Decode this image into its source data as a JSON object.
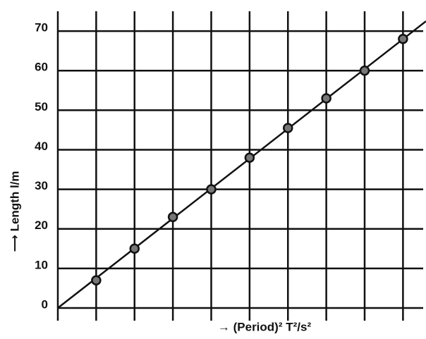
{
  "chart_data": {
    "type": "scatter",
    "x_label": "→ (Period)² T²/s²",
    "y_label": "⟶ Length l/m",
    "x": [
      1,
      2,
      3,
      4,
      5,
      6,
      7,
      8,
      9
    ],
    "values": [
      7,
      15,
      23,
      30,
      38,
      45.5,
      53,
      60,
      68
    ],
    "color": "#111111",
    "xlim": [
      0,
      9.6
    ],
    "ylim": [
      0,
      75
    ],
    "yticks": [
      0,
      10,
      20,
      30,
      40,
      50,
      60,
      70
    ],
    "grid": true,
    "fit_line": true
  }
}
